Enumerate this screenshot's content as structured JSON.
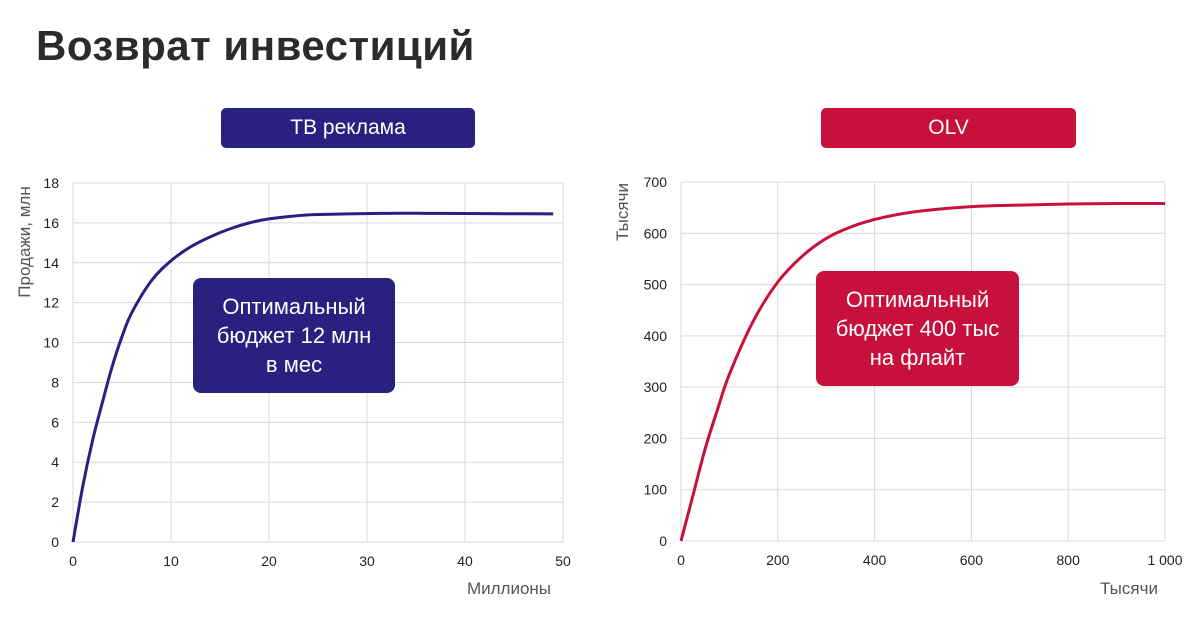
{
  "page": {
    "title": "Возврат инвестиций"
  },
  "colors": {
    "tv": "#2a2080",
    "olv": "#c8103c",
    "grid": "#d9d9d9"
  },
  "chart_data": [
    {
      "type": "line",
      "header": "ТВ реклама",
      "xlabel": "Миллионы",
      "ylabel": "Продажи, млн",
      "xlim": [
        0,
        50
      ],
      "ylim": [
        0,
        18
      ],
      "x_ticks": [
        "0",
        "10",
        "20",
        "30",
        "40",
        "50"
      ],
      "y_ticks": [
        "0",
        "2",
        "4",
        "6",
        "8",
        "10",
        "12",
        "14",
        "16",
        "18"
      ],
      "grid": true,
      "series": [
        {
          "x": [
            0,
            1,
            2,
            3,
            4,
            5,
            6,
            8,
            10,
            12,
            14,
            16,
            18,
            20,
            24,
            28,
            32,
            36,
            40,
            45,
            49
          ],
          "values": [
            0,
            2.8,
            5.1,
            7.0,
            8.8,
            10.3,
            11.5,
            13.1,
            14.1,
            14.8,
            15.3,
            15.7,
            16.0,
            16.2,
            16.4,
            16.45,
            16.48,
            16.48,
            16.47,
            16.46,
            16.45
          ]
        }
      ],
      "annotation": "Оптимальный\nбюджет 12 млн\nв мес"
    },
    {
      "type": "line",
      "header": "OLV",
      "xlabel": "Тысячи",
      "ylabel": "Тысячи",
      "xlim": [
        0,
        1000
      ],
      "ylim": [
        0,
        700
      ],
      "x_ticks": [
        "0",
        "200",
        "400",
        "600",
        "800",
        "1 000"
      ],
      "y_ticks": [
        "0",
        "100",
        "200",
        "300",
        "400",
        "500",
        "600",
        "700"
      ],
      "grid": true,
      "series": [
        {
          "x": [
            0,
            25,
            50,
            75,
            100,
            150,
            200,
            250,
            300,
            350,
            400,
            450,
            500,
            600,
            700,
            800,
            900,
            1000
          ],
          "values": [
            0,
            90,
            180,
            255,
            325,
            430,
            505,
            555,
            590,
            612,
            627,
            637,
            644,
            652,
            655,
            657,
            658,
            658
          ]
        }
      ],
      "annotation": "Оптимальный\nбюджет 400 тыс\nна флайт"
    }
  ]
}
